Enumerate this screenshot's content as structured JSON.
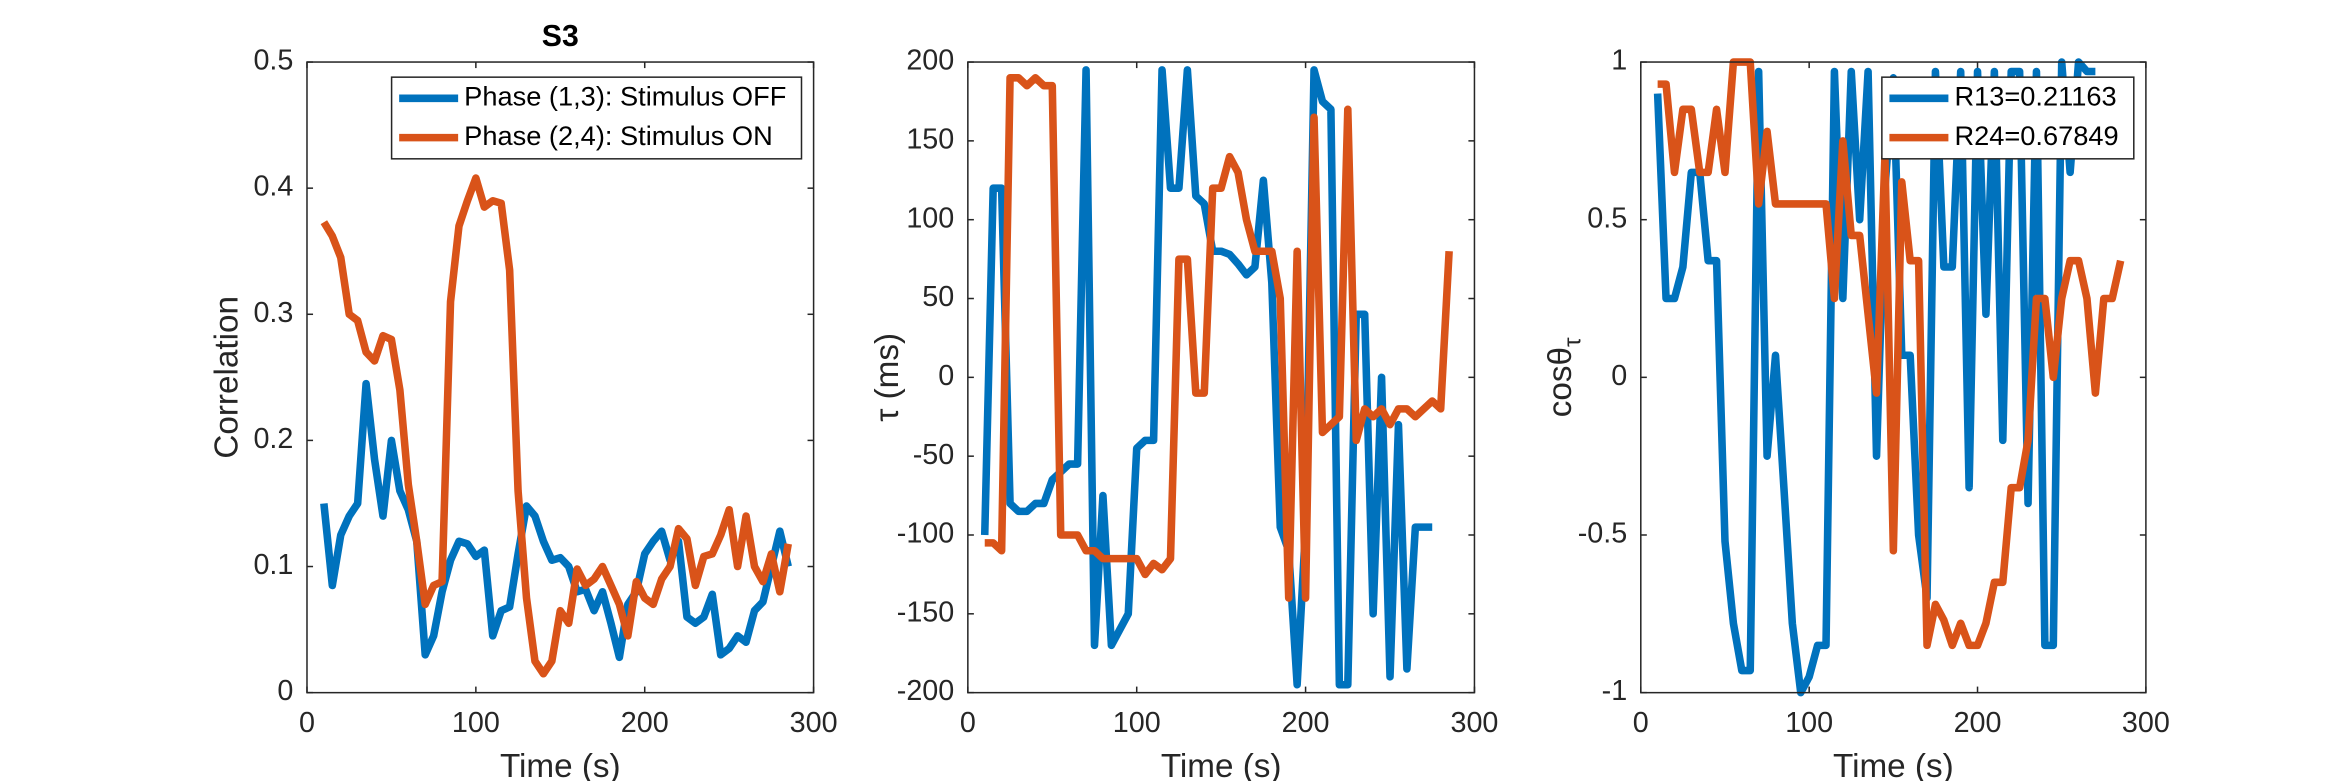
{
  "chart_data": [
    {
      "type": "line",
      "title": "S3",
      "xlabel": "Time (s)",
      "ylabel": "Correlation",
      "xlim": [
        0,
        300
      ],
      "xticks": [
        0,
        100,
        200,
        300
      ],
      "ylim": [
        0,
        0.5
      ],
      "yticks": [
        0,
        0.1,
        0.2,
        0.3,
        0.4,
        0.5
      ],
      "legend": "northeast",
      "x": [
        10,
        15,
        20,
        25,
        30,
        35,
        40,
        45,
        50,
        55,
        60,
        65,
        70,
        75,
        80,
        85,
        90,
        95,
        100,
        105,
        110,
        115,
        120,
        125,
        130,
        135,
        140,
        145,
        150,
        155,
        160,
        165,
        170,
        175,
        180,
        185,
        190,
        195,
        200,
        205,
        210,
        215,
        220,
        225,
        230,
        235,
        240,
        245,
        250,
        255,
        260,
        265,
        270,
        275,
        280,
        285
      ],
      "series": [
        {
          "name": "Phase (1,3): Stimulus OFF",
          "color": "#0072BD",
          "values": [
            0.15,
            0.085,
            0.125,
            0.14,
            0.15,
            0.245,
            0.185,
            0.14,
            0.2,
            0.16,
            0.145,
            0.12,
            0.03,
            0.045,
            0.08,
            0.105,
            0.12,
            0.118,
            0.108,
            0.113,
            0.045,
            0.065,
            0.068,
            0.11,
            0.148,
            0.14,
            0.12,
            0.105,
            0.107,
            0.1,
            0.08,
            0.082,
            0.065,
            0.08,
            0.055,
            0.028,
            0.07,
            0.08,
            0.11,
            0.12,
            0.128,
            0.105,
            0.12,
            0.06,
            0.055,
            0.06,
            0.078,
            0.03,
            0.035,
            0.045,
            0.04,
            0.065,
            0.072,
            0.1,
            0.128,
            0.1
          ]
        },
        {
          "name": "Phase (2,4): Stimulus ON",
          "color": "#D95319",
          "values": [
            0.373,
            0.362,
            0.345,
            0.3,
            0.295,
            0.27,
            0.263,
            0.283,
            0.28,
            0.24,
            0.165,
            0.12,
            0.07,
            0.085,
            0.088,
            0.31,
            0.37,
            0.39,
            0.408,
            0.385,
            0.39,
            0.388,
            0.335,
            0.16,
            0.075,
            0.025,
            0.015,
            0.025,
            0.065,
            0.055,
            0.098,
            0.085,
            0.09,
            0.1,
            0.085,
            0.07,
            0.045,
            0.088,
            0.075,
            0.07,
            0.09,
            0.1,
            0.13,
            0.122,
            0.085,
            0.108,
            0.11,
            0.125,
            0.145,
            0.1,
            0.14,
            0.1,
            0.088,
            0.11,
            0.08,
            0.118
          ]
        }
      ]
    },
    {
      "type": "line",
      "xlabel": "Time (s)",
      "ylabel": "τ (ms)",
      "xlim": [
        0,
        300
      ],
      "xticks": [
        0,
        100,
        200,
        300
      ],
      "ylim": [
        -200,
        200
      ],
      "yticks": [
        -200,
        -150,
        -100,
        -50,
        0,
        50,
        100,
        150,
        200
      ],
      "x": [
        10,
        15,
        20,
        25,
        30,
        35,
        40,
        45,
        50,
        55,
        60,
        65,
        70,
        75,
        80,
        85,
        90,
        95,
        100,
        105,
        110,
        115,
        120,
        125,
        130,
        135,
        140,
        145,
        150,
        155,
        160,
        165,
        170,
        175,
        180,
        185,
        190,
        195,
        200,
        205,
        210,
        215,
        220,
        225,
        230,
        235,
        240,
        245,
        250,
        255,
        260,
        265,
        270,
        275,
        280,
        285
      ],
      "series": [
        {
          "color": "#0072BD",
          "values": [
            -100,
            120,
            120,
            -80,
            -85,
            -85,
            -80,
            -80,
            -65,
            -60,
            -55,
            -55,
            195,
            -170,
            -75,
            -170,
            -160,
            -150,
            -45,
            -40,
            -40,
            195,
            120,
            120,
            195,
            115,
            110,
            80,
            80,
            78,
            72,
            65,
            70,
            125,
            60,
            -95,
            -110,
            -195,
            -95,
            195,
            175,
            170,
            -195,
            -195,
            40,
            40,
            -150,
            0,
            -190,
            -30,
            -185,
            -95,
            -95,
            -95,
            null,
            null
          ]
        },
        {
          "color": "#D95319",
          "values": [
            -105,
            -105,
            -110,
            190,
            190,
            185,
            190,
            185,
            185,
            -100,
            -100,
            -100,
            -110,
            -110,
            -115,
            -115,
            -115,
            -115,
            -115,
            -125,
            -118,
            -122,
            -115,
            75,
            75,
            -10,
            -10,
            120,
            120,
            140,
            130,
            100,
            80,
            80,
            80,
            50,
            -140,
            80,
            -140,
            165,
            -35,
            -30,
            -25,
            170,
            -40,
            -20,
            -25,
            -20,
            -30,
            -20,
            -20,
            -25,
            -20,
            -15,
            -20,
            80
          ]
        }
      ]
    },
    {
      "type": "line",
      "xlabel": "Time (s)",
      "ylabel": "cosθ",
      "ylabel_sub": "τ",
      "xlim": [
        0,
        300
      ],
      "xticks": [
        0,
        100,
        200,
        300
      ],
      "ylim": [
        -1,
        1
      ],
      "yticks": [
        -1,
        -0.5,
        0,
        0.5,
        1
      ],
      "legend": "northeast",
      "x": [
        10,
        15,
        20,
        25,
        30,
        35,
        40,
        45,
        50,
        55,
        60,
        65,
        70,
        75,
        80,
        85,
        90,
        95,
        100,
        105,
        110,
        115,
        120,
        125,
        130,
        135,
        140,
        145,
        150,
        155,
        160,
        165,
        170,
        175,
        180,
        185,
        190,
        195,
        200,
        205,
        210,
        215,
        220,
        225,
        230,
        235,
        240,
        245,
        250,
        255,
        260,
        265,
        270,
        275,
        280,
        285
      ],
      "series": [
        {
          "name": "R13=0.21163",
          "color": "#0072BD",
          "values": [
            0.9,
            0.25,
            0.25,
            0.35,
            0.65,
            0.65,
            0.37,
            0.37,
            -0.52,
            -0.78,
            -0.93,
            -0.93,
            0.97,
            -0.25,
            0.07,
            -0.35,
            -0.78,
            -1,
            -0.95,
            -0.85,
            -0.85,
            0.97,
            0.25,
            0.97,
            0.5,
            0.97,
            -0.25,
            0.6,
            0.95,
            0.07,
            0.07,
            -0.5,
            -0.7,
            0.97,
            0.35,
            0.35,
            0.97,
            -0.35,
            0.97,
            0.2,
            0.97,
            -0.2,
            0.97,
            0.97,
            -0.4,
            0.97,
            -0.85,
            -0.85,
            1,
            0.65,
            1,
            0.97,
            0.97,
            null,
            null,
            null
          ]
        },
        {
          "name": "R24=0.67849",
          "color": "#D95319",
          "values": [
            0.93,
            0.93,
            0.65,
            0.85,
            0.85,
            0.65,
            0.65,
            0.85,
            0.65,
            1,
            1,
            1,
            0.55,
            0.78,
            0.55,
            0.55,
            0.55,
            0.55,
            0.55,
            0.55,
            0.55,
            0.25,
            0.75,
            0.45,
            0.45,
            0.2,
            -0.05,
            0.7,
            -0.55,
            0.62,
            0.37,
            0.37,
            -0.85,
            -0.72,
            -0.77,
            -0.85,
            -0.78,
            -0.85,
            -0.85,
            -0.78,
            -0.65,
            -0.65,
            -0.35,
            -0.35,
            -0.2,
            0.25,
            0.25,
            0,
            0.25,
            0.37,
            0.37,
            0.25,
            -0.05,
            0.25,
            0.25,
            0.37
          ]
        }
      ]
    }
  ]
}
